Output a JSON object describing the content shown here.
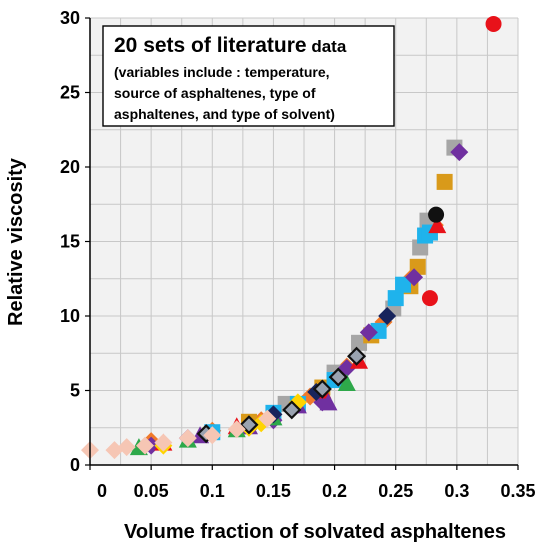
{
  "chart_data": {
    "type": "scatter",
    "xlabel": "Volume fraction of  solvated asphaltenes",
    "ylabel": "Relative viscosity",
    "xlim": [
      0,
      0.35
    ],
    "ylim": [
      0,
      30
    ],
    "x_ticks": [
      "0",
      "0.05",
      "0.1",
      "0.15",
      "0.2",
      "0.25",
      "0.3",
      "0.35"
    ],
    "y_ticks": [
      "0",
      "5",
      "10",
      "15",
      "20",
      "25",
      "30"
    ],
    "grid": true,
    "legend": "none",
    "annotation": {
      "title_main": "20 sets of literature",
      "title_small": " data",
      "lines": [
        "(variables include : temperature,",
        "source of asphaltenes, type of",
        "asphaltenes, and type of solvent)"
      ]
    },
    "colors": {
      "orange": "#f07a2a",
      "gray": "#a6a6a6",
      "gold": "#d99a1a",
      "skyblue": "#1fb3ec",
      "purple": "#7030a0",
      "red": "#e8121a",
      "green": "#2ea84a",
      "yellow": "#ffd400",
      "navy": "#17245c",
      "black": "#111111",
      "pink": "#f6c6b4"
    },
    "series": [
      {
        "marker": "diamond",
        "color": "orange",
        "points": [
          [
            0.05,
            1.6
          ],
          [
            0.1,
            2.3
          ],
          [
            0.14,
            3.0
          ],
          [
            0.18,
            4.6
          ],
          [
            0.21,
            6.6
          ],
          [
            0.24,
            9.6
          ],
          [
            0.262,
            12.5
          ],
          [
            0.282,
            16.1
          ]
        ]
      },
      {
        "marker": "square",
        "color": "gray",
        "points": [
          [
            0.16,
            4.1
          ],
          [
            0.2,
            6.2
          ],
          [
            0.22,
            8.2
          ],
          [
            0.248,
            10.5
          ],
          [
            0.27,
            14.6
          ],
          [
            0.276,
            16.4
          ],
          [
            0.298,
            21.3
          ]
        ]
      },
      {
        "marker": "square",
        "color": "gold",
        "points": [
          [
            0.13,
            2.9
          ],
          [
            0.19,
            5.2
          ],
          [
            0.23,
            8.7
          ],
          [
            0.262,
            12.0
          ],
          [
            0.268,
            13.3
          ],
          [
            0.29,
            19.0
          ]
        ]
      },
      {
        "marker": "square",
        "color": "skyblue",
        "points": [
          [
            0.1,
            2.2
          ],
          [
            0.15,
            3.5
          ],
          [
            0.17,
            4.1
          ],
          [
            0.2,
            5.7
          ],
          [
            0.236,
            9.0
          ],
          [
            0.25,
            11.2
          ],
          [
            0.256,
            12.1
          ],
          [
            0.274,
            15.4
          ],
          [
            0.278,
            15.6
          ]
        ]
      },
      {
        "marker": "diamond",
        "color": "purple",
        "points": [
          [
            0.05,
            1.3
          ],
          [
            0.08,
            1.8
          ],
          [
            0.15,
            3.0
          ],
          [
            0.19,
            4.2
          ],
          [
            0.21,
            6.5
          ],
          [
            0.228,
            8.9
          ],
          [
            0.265,
            12.6
          ],
          [
            0.302,
            21.0
          ]
        ]
      },
      {
        "marker": "triangle",
        "color": "red",
        "points": [
          [
            0.06,
            1.5
          ],
          [
            0.12,
            2.6
          ],
          [
            0.19,
            5.0
          ],
          [
            0.22,
            7.0
          ],
          [
            0.284,
            16.1
          ]
        ]
      },
      {
        "marker": "circle",
        "color": "red",
        "points": [
          [
            0.278,
            11.2
          ],
          [
            0.33,
            29.6
          ]
        ]
      },
      {
        "marker": "triangle",
        "color": "purple",
        "points": [
          [
            0.09,
            2.0
          ],
          [
            0.13,
            2.6
          ],
          [
            0.17,
            4.0
          ],
          [
            0.195,
            4.2
          ]
        ]
      },
      {
        "marker": "triangle",
        "color": "green",
        "points": [
          [
            0.04,
            1.2
          ],
          [
            0.08,
            1.7
          ],
          [
            0.12,
            2.4
          ],
          [
            0.15,
            3.2
          ],
          [
            0.21,
            5.5
          ]
        ]
      },
      {
        "marker": "diamond",
        "color": "yellow",
        "points": [
          [
            0.06,
            1.3
          ],
          [
            0.13,
            2.5
          ],
          [
            0.14,
            2.8
          ],
          [
            0.17,
            4.2
          ]
        ]
      },
      {
        "marker": "diamond",
        "color": "navy",
        "points": [
          [
            0.15,
            3.4
          ],
          [
            0.185,
            4.9
          ],
          [
            0.243,
            10.0
          ]
        ]
      },
      {
        "marker": "circle",
        "color": "black",
        "points": [
          [
            0.283,
            16.8
          ]
        ]
      },
      {
        "marker": "diamond-outline",
        "color": "black",
        "points": [
          [
            0.095,
            2.1
          ],
          [
            0.13,
            2.7
          ],
          [
            0.165,
            3.7
          ],
          [
            0.19,
            5.1
          ],
          [
            0.203,
            5.9
          ],
          [
            0.218,
            7.3
          ]
        ]
      },
      {
        "marker": "diamond",
        "color": "pink",
        "points": [
          [
            0.0,
            1.0
          ],
          [
            0.02,
            1.0
          ],
          [
            0.03,
            1.2
          ],
          [
            0.045,
            1.3
          ],
          [
            0.06,
            1.5
          ],
          [
            0.08,
            1.8
          ],
          [
            0.1,
            2.0
          ],
          [
            0.12,
            2.4
          ],
          [
            0.145,
            3.1
          ]
        ]
      }
    ]
  }
}
